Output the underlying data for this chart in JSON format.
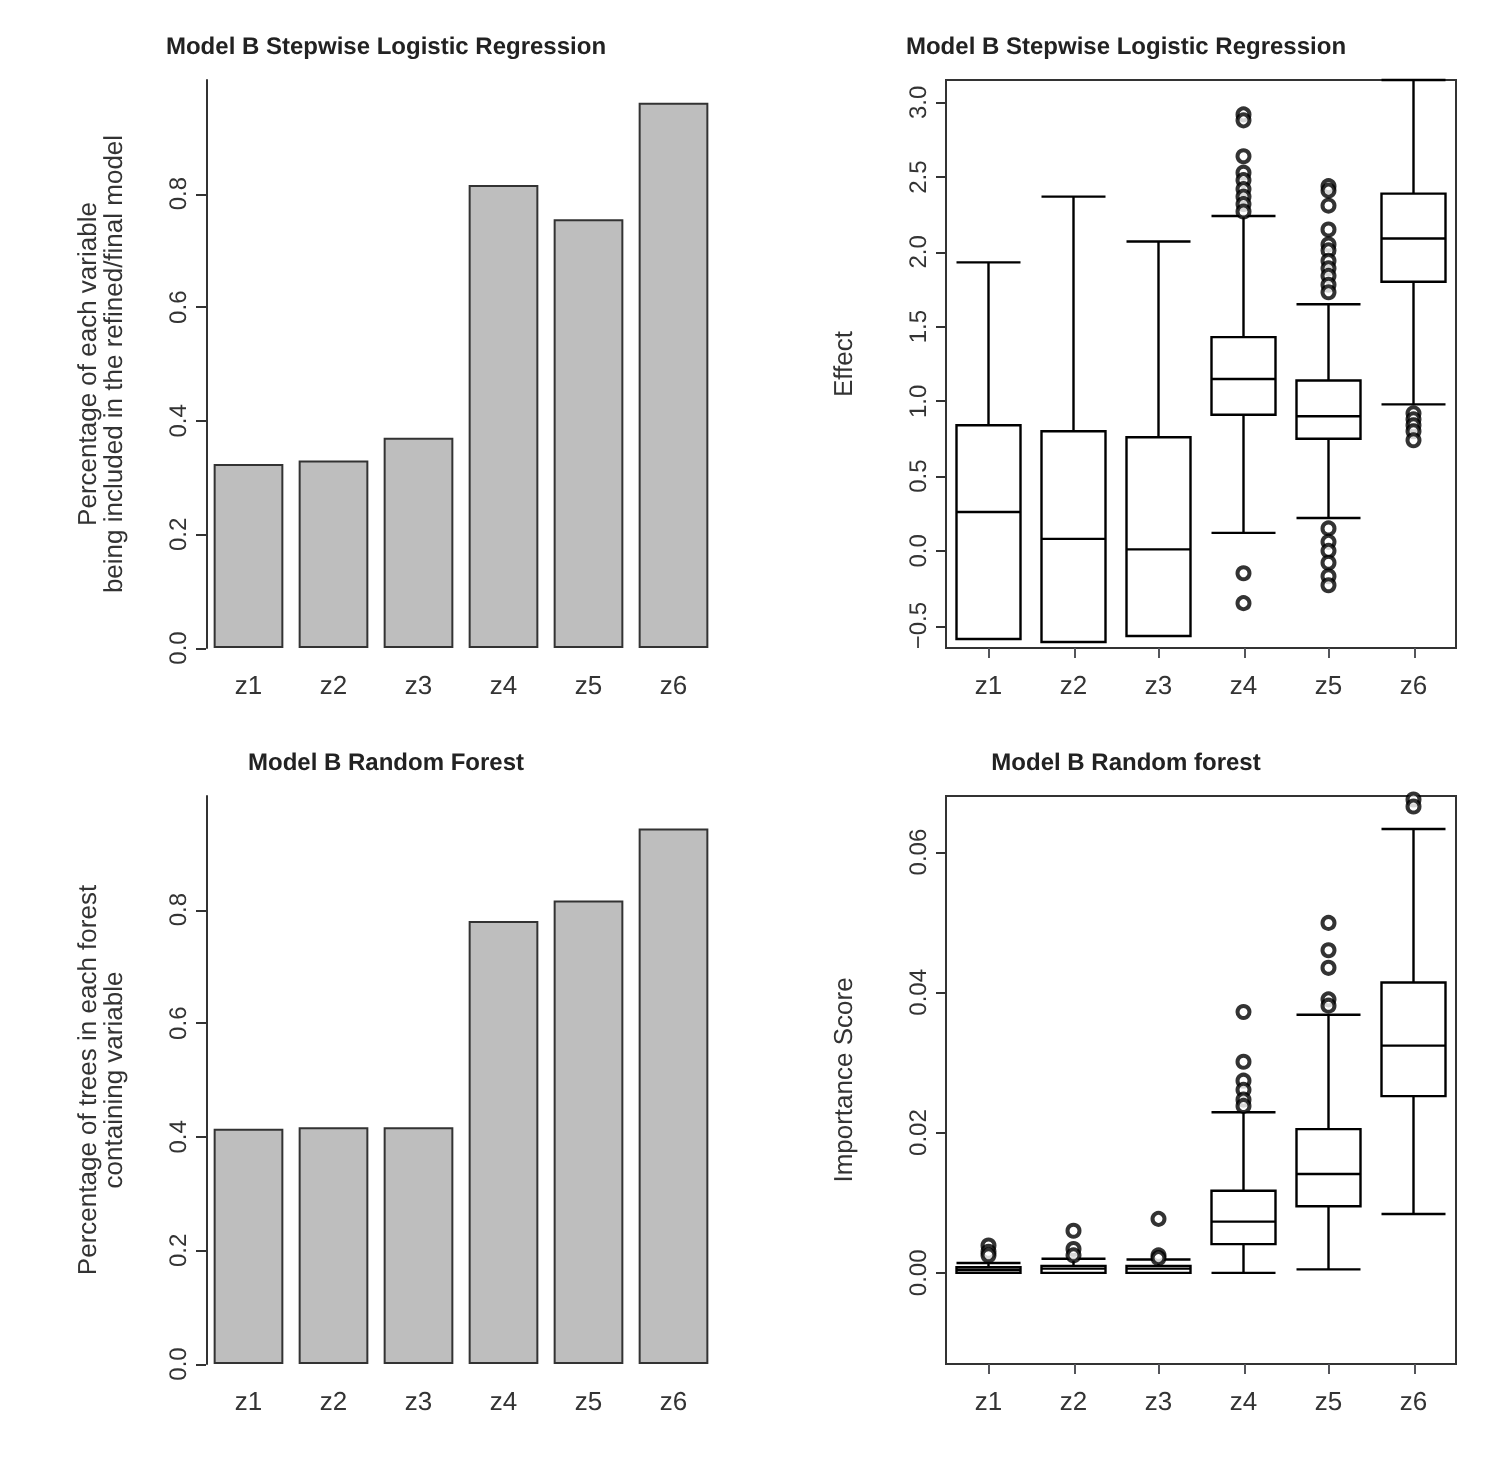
{
  "chart_data": [
    {
      "type": "bar",
      "title": "Model B Stepwise Logistic Regression",
      "ylabel": "Percentage of each variable\nbeing included in the refined/final model",
      "categories": [
        "z1",
        "z2",
        "z3",
        "z4",
        "z5",
        "z6"
      ],
      "values": [
        0.324,
        0.33,
        0.37,
        0.815,
        0.755,
        0.96
      ],
      "color": "#bebebe",
      "ylim": [
        0,
        1
      ],
      "yticks": [
        {
          "value": 0,
          "label": "0.0"
        },
        0.2,
        0.4,
        0.6,
        0.8
      ]
    },
    {
      "type": "box",
      "title": "Model B Stepwise Logistic Regression",
      "ylabel": "Effect",
      "categories": [
        "z1",
        "z2",
        "z3",
        "z4",
        "z5",
        "z6"
      ],
      "ylim": [
        -0.65,
        3.15
      ],
      "yticks": [
        -0.5,
        {
          "value": 0,
          "label": "0.0"
        },
        0.5,
        {
          "value": 1,
          "label": "1.0"
        },
        1.5,
        {
          "value": 2,
          "label": "2.0"
        },
        2.5,
        {
          "value": 3,
          "label": "3.0"
        }
      ],
      "boxes": [
        {
          "low": -0.59,
          "q1": -0.59,
          "median": 0.26,
          "q3": 0.84,
          "high": 1.93
        },
        {
          "low": -0.61,
          "q1": -0.61,
          "median": 0.08,
          "q3": 0.8,
          "high": 2.37
        },
        {
          "low": -0.57,
          "q1": -0.57,
          "median": 0.01,
          "q3": 0.76,
          "high": 2.07
        },
        {
          "low": 0.12,
          "q1": 0.91,
          "median": 1.15,
          "q3": 1.43,
          "high": 2.24,
          "outliers": [
            2.92,
            2.88,
            2.64,
            2.53,
            2.48,
            2.42,
            2.37,
            2.32,
            2.27,
            -0.15,
            -0.35
          ]
        },
        {
          "low": 0.22,
          "q1": 0.75,
          "median": 0.9,
          "q3": 1.14,
          "high": 1.65,
          "outliers": [
            2.44,
            2.41,
            2.31,
            2.15,
            2.05,
            2.01,
            1.94,
            1.89,
            1.84,
            1.78,
            1.73,
            0.15,
            0.06,
            0,
            -0.08,
            -0.17,
            -0.23
          ]
        },
        {
          "low": 0.98,
          "q1": 1.8,
          "median": 2.09,
          "q3": 2.39,
          "high": 3.15,
          "outliers": [
            0.92,
            0.88,
            0.84,
            0.8,
            0.74
          ]
        }
      ]
    },
    {
      "type": "bar",
      "title": "Model B Random Forest",
      "ylabel": "Percentage of trees in each forest\ncontaining variable",
      "categories": [
        "z1",
        "z2",
        "z3",
        "z4",
        "z5",
        "z6"
      ],
      "values": [
        0.414,
        0.417,
        0.417,
        0.78,
        0.816,
        0.943
      ],
      "color": "#bebebe",
      "ylim": [
        0,
        1
      ],
      "yticks": [
        {
          "value": 0,
          "label": "0.0"
        },
        0.2,
        0.4,
        0.6,
        0.8
      ]
    },
    {
      "type": "box",
      "title": "Model B Random forest",
      "ylabel": "Importance Score",
      "categories": [
        "z1",
        "z2",
        "z3",
        "z4",
        "z5",
        "z6"
      ],
      "ylim": [
        -0.013,
        0.068
      ],
      "yticks": [
        {
          "value": 0,
          "label": "0.00"
        },
        0.02,
        0.04,
        0.06
      ],
      "boxes": [
        {
          "low": 0,
          "q1": 0,
          "median": 0.0004,
          "q3": 0.0008,
          "high": 0.0014,
          "outliers": [
            0.0039,
            0.003,
            0.0025
          ]
        },
        {
          "low": 0,
          "q1": 0,
          "median": 0.0006,
          "q3": 0.001,
          "high": 0.002,
          "outliers": [
            0.006,
            0.0034,
            0.0025
          ]
        },
        {
          "low": 0,
          "q1": 0,
          "median": 0.0006,
          "q3": 0.001,
          "high": 0.0019,
          "outliers": [
            0.0077,
            0.0025,
            0.0021
          ]
        },
        {
          "low": 0,
          "q1": 0.0041,
          "median": 0.0073,
          "q3": 0.0117,
          "high": 0.0229,
          "outliers": [
            0.0372,
            0.0301,
            0.0274,
            0.0261,
            0.0247,
            0.0238
          ]
        },
        {
          "low": 0.0005,
          "q1": 0.0095,
          "median": 0.0141,
          "q3": 0.0205,
          "high": 0.0368,
          "outliers": [
            0.0499,
            0.046,
            0.0435,
            0.039,
            0.0381
          ]
        },
        {
          "low": 0.0084,
          "q1": 0.0252,
          "median": 0.0324,
          "q3": 0.0414,
          "high": 0.0633,
          "outliers": [
            0.0675,
            0.0665
          ]
        }
      ]
    }
  ]
}
